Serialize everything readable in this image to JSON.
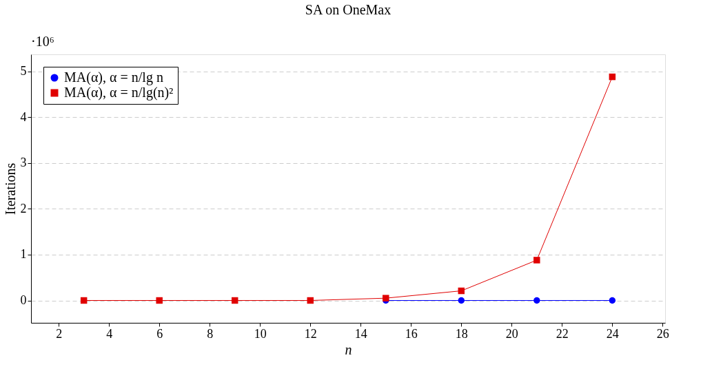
{
  "chart_data": {
    "type": "line",
    "title": "SA on OneMax",
    "xlabel": "n",
    "ylabel": "Iterations",
    "annotations": [
      "·10⁶"
    ],
    "x": [
      3,
      6,
      9,
      12,
      15,
      18,
      21,
      24
    ],
    "series": [
      {
        "name": "MA(α), α = n/lg n",
        "color": "#0000ff",
        "marker": "circle",
        "values": [
          null,
          null,
          null,
          null,
          0,
          0,
          0,
          0
        ]
      },
      {
        "name": "MA(α), α = n/lg(n)²",
        "color": "#e00000",
        "marker": "square",
        "values": [
          0,
          0,
          0,
          0,
          0.05,
          0.21,
          0.88,
          4.88
        ]
      }
    ],
    "xlim": [
      0.9,
      26.1
    ],
    "ylim": [
      -0.488,
      5.37
    ],
    "xticks": [
      2,
      4,
      6,
      8,
      10,
      12,
      14,
      16,
      18,
      20,
      22,
      24,
      26
    ],
    "yticks": [
      0,
      1,
      2,
      3,
      4,
      5
    ],
    "grid": "y",
    "legend": "top left",
    "line_style": "solid"
  }
}
